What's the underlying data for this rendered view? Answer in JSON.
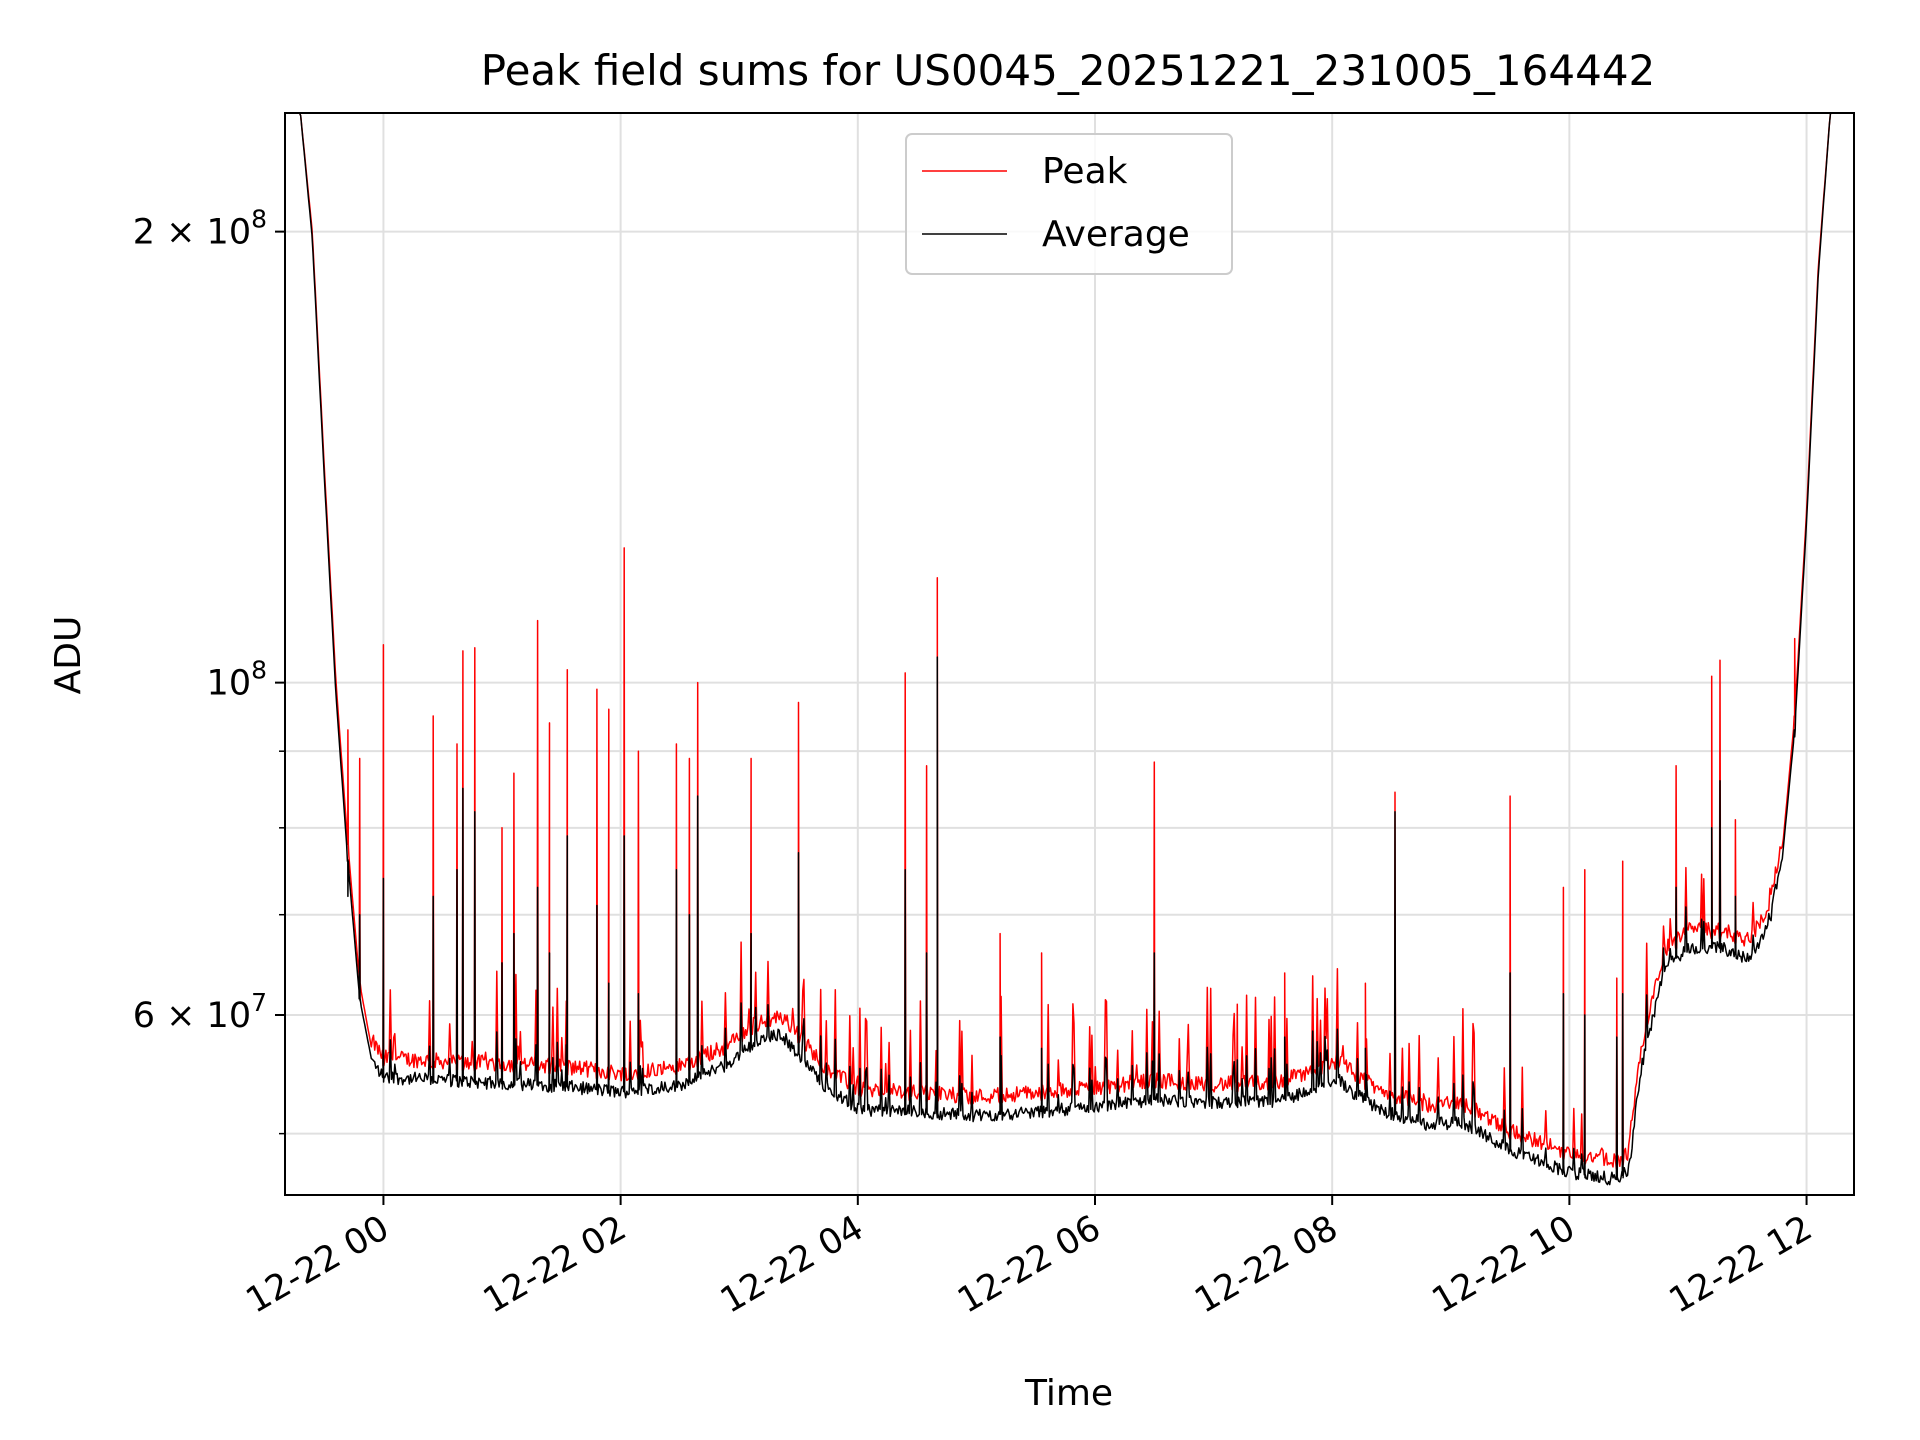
{
  "chart_data": {
    "type": "line",
    "title": "Peak field sums for US0045_20251221_231005_164442",
    "xlabel": "Time",
    "ylabel": "ADU",
    "yscale": "log",
    "xlim": [
      -0.83,
      12.4
    ],
    "ylim": [
      45500000,
      240000000
    ],
    "grid": true,
    "legend_position": "upper center",
    "x_ticks": [
      {
        "value": 0,
        "label": "12-22 00"
      },
      {
        "value": 2,
        "label": "12-22 02"
      },
      {
        "value": 4,
        "label": "12-22 04"
      },
      {
        "value": 6,
        "label": "12-22 06"
      },
      {
        "value": 8,
        "label": "12-22 08"
      },
      {
        "value": 10,
        "label": "12-22 10"
      },
      {
        "value": 12,
        "label": "12-22 12"
      }
    ],
    "y_ticks": [
      {
        "value": 60000000,
        "mant": "6",
        "exp": "7"
      },
      {
        "value": 100000000,
        "mant": "",
        "exp": "8"
      },
      {
        "value": 200000000,
        "mant": "2",
        "exp": "8"
      }
    ],
    "y_minor_ticks": [
      50000000,
      70000000,
      80000000,
      90000000
    ],
    "series": [
      {
        "name": "Peak",
        "color": "#ff0000"
      },
      {
        "name": "Average",
        "color": "#000000"
      }
    ],
    "baseline": {
      "x": [
        -0.83,
        -0.7,
        -0.6,
        -0.5,
        -0.4,
        -0.3,
        -0.2,
        -0.1,
        0.0,
        0.5,
        1.0,
        1.5,
        2.0,
        2.5,
        2.9,
        3.1,
        3.2,
        3.35,
        3.5,
        3.7,
        4.0,
        4.5,
        5.0,
        5.5,
        6.0,
        6.5,
        7.0,
        7.5,
        7.8,
        8.05,
        8.2,
        8.4,
        8.8,
        9.1,
        9.3,
        9.5,
        9.8,
        10.0,
        10.4,
        10.5,
        10.6,
        10.8,
        11.0,
        11.3,
        11.5,
        11.6,
        11.7,
        11.8,
        11.9,
        12.0,
        12.1,
        12.2,
        12.4
      ],
      "peak": [
        240000000,
        240000000,
        200000000,
        140000000,
        100000000,
        78000000,
        63000000,
        57000000,
        55500000,
        55200000,
        55000000,
        54800000,
        54200000,
        54800000,
        56500000,
        58200000,
        58600000,
        59200000,
        57500000,
        55000000,
        52800000,
        52600000,
        52300000,
        52600000,
        53000000,
        53600000,
        53300000,
        53400000,
        54200000,
        55300000,
        54000000,
        52800000,
        51600000,
        51800000,
        50600000,
        49600000,
        48600000,
        47900000,
        47400000,
        48000000,
        56000000,
        65500000,
        67500000,
        67500000,
        66500000,
        68000000,
        71000000,
        78000000,
        95000000,
        130000000,
        190000000,
        240000000,
        240000000
      ],
      "average": [
        240000000,
        240000000,
        198000000,
        138000000,
        98000000,
        76000000,
        61500000,
        56000000,
        54500000,
        54300000,
        54000000,
        53800000,
        53300000,
        53900000,
        55600000,
        57300000,
        57700000,
        58300000,
        56500000,
        54000000,
        51900000,
        51700000,
        51400000,
        51700000,
        52100000,
        52700000,
        52400000,
        52500000,
        53300000,
        54400000,
        53100000,
        51900000,
        50700000,
        50900000,
        49800000,
        48800000,
        47800000,
        47100000,
        46600000,
        47200000,
        55000000,
        64500000,
        66500000,
        66500000,
        65500000,
        67000000,
        70000000,
        77000000,
        93000000,
        128000000,
        188000000,
        240000000,
        240000000
      ]
    },
    "spikes": [
      {
        "x": -0.3,
        "peak": 93000000,
        "average": 72000000
      },
      {
        "x": -0.2,
        "peak": 89000000,
        "average": 70000000
      },
      {
        "x": 0.0,
        "peak": 106000000,
        "average": 74000000
      },
      {
        "x": 0.42,
        "peak": 95000000,
        "average": 72000000
      },
      {
        "x": 0.62,
        "peak": 91000000,
        "average": 75000000
      },
      {
        "x": 0.67,
        "peak": 105000000,
        "average": 85000000
      },
      {
        "x": 0.77,
        "peak": 105500000,
        "average": 82000000
      },
      {
        "x": 1.0,
        "peak": 80000000,
        "average": 65000000
      },
      {
        "x": 1.1,
        "peak": 87000000,
        "average": 68000000
      },
      {
        "x": 1.3,
        "peak": 110000000,
        "average": 73000000
      },
      {
        "x": 1.4,
        "peak": 94000000,
        "average": 66000000
      },
      {
        "x": 1.55,
        "peak": 102000000,
        "average": 79000000
      },
      {
        "x": 1.8,
        "peak": 99000000,
        "average": 71000000
      },
      {
        "x": 1.9,
        "peak": 96000000,
        "average": 63000000
      },
      {
        "x": 2.03,
        "peak": 123000000,
        "average": 79000000
      },
      {
        "x": 2.15,
        "peak": 90000000,
        "average": 62000000
      },
      {
        "x": 2.47,
        "peak": 91000000,
        "average": 75000000
      },
      {
        "x": 2.58,
        "peak": 89000000,
        "average": 70000000
      },
      {
        "x": 2.65,
        "peak": 100000000,
        "average": 84000000
      },
      {
        "x": 3.1,
        "peak": 89000000,
        "average": 68000000
      },
      {
        "x": 3.5,
        "peak": 97000000,
        "average": 77000000
      },
      {
        "x": 4.4,
        "peak": 101500000,
        "average": 75000000
      },
      {
        "x": 4.58,
        "peak": 88000000,
        "average": 66000000
      },
      {
        "x": 4.67,
        "peak": 117500000,
        "average": 104000000
      },
      {
        "x": 5.2,
        "peak": 68000000,
        "average": 58000000
      },
      {
        "x": 5.55,
        "peak": 66000000,
        "average": 57000000
      },
      {
        "x": 6.5,
        "peak": 88500000,
        "average": 66000000
      },
      {
        "x": 7.2,
        "peak": 61000000,
        "average": 56000000
      },
      {
        "x": 7.6,
        "peak": 64000000,
        "average": 58000000
      },
      {
        "x": 8.28,
        "peak": 63000000,
        "average": 57000000
      },
      {
        "x": 8.53,
        "peak": 84500000,
        "average": 82000000
      },
      {
        "x": 9.5,
        "peak": 84000000,
        "average": 64000000
      },
      {
        "x": 9.95,
        "peak": 73000000,
        "average": 62000000
      },
      {
        "x": 10.13,
        "peak": 75000000,
        "average": 60000000
      },
      {
        "x": 10.4,
        "peak": 63500000,
        "average": 58000000
      },
      {
        "x": 10.45,
        "peak": 76000000,
        "average": 62000000
      },
      {
        "x": 10.9,
        "peak": 88000000,
        "average": 73000000
      },
      {
        "x": 11.2,
        "peak": 101000000,
        "average": 80000000
      },
      {
        "x": 11.27,
        "peak": 103500000,
        "average": 86000000
      },
      {
        "x": 11.4,
        "peak": 81000000,
        "average": 72000000
      },
      {
        "x": 11.9,
        "peak": 107000000,
        "average": 92000000
      }
    ]
  }
}
